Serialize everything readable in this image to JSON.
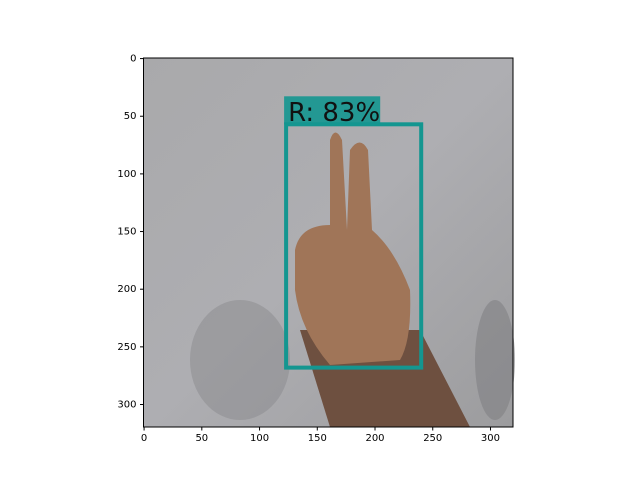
{
  "chart_data": {
    "type": "image",
    "xlim": [
      -0.5,
      319.5
    ],
    "ylim": [
      319.5,
      -0.5
    ],
    "xticks": [
      0,
      50,
      100,
      150,
      200,
      250,
      300
    ],
    "yticks": [
      0,
      50,
      100,
      150,
      200,
      250,
      300
    ],
    "box": {
      "label": "R: 83%",
      "x": [
        123,
        240
      ],
      "y": [
        57,
        268
      ],
      "color": "#149690"
    }
  }
}
